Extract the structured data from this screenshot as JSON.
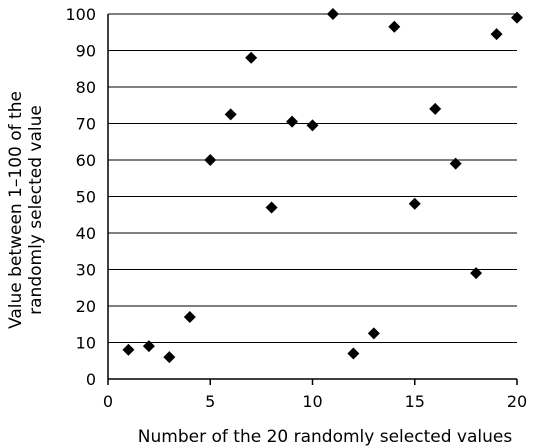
{
  "chart_data": {
    "type": "scatter",
    "title": "",
    "xlabel": "Number of the 20 randomly selected values",
    "ylabel_lines": [
      "Value between 1–100 of the",
      "randomly selected value"
    ],
    "xlim": [
      0,
      20
    ],
    "ylim": [
      0,
      100
    ],
    "xticks": [
      0,
      5,
      10,
      15,
      20
    ],
    "yticks": [
      0,
      10,
      20,
      30,
      40,
      50,
      60,
      70,
      80,
      90,
      100
    ],
    "grid": "horizontal",
    "legend": "none",
    "marker": "diamond",
    "marker_color": "#000000",
    "points": [
      {
        "x": 1,
        "y": 8
      },
      {
        "x": 2,
        "y": 9
      },
      {
        "x": 3,
        "y": 6
      },
      {
        "x": 4,
        "y": 17
      },
      {
        "x": 5,
        "y": 60
      },
      {
        "x": 6,
        "y": 72.5
      },
      {
        "x": 7,
        "y": 88
      },
      {
        "x": 8,
        "y": 47
      },
      {
        "x": 9,
        "y": 70.5
      },
      {
        "x": 10,
        "y": 69.5
      },
      {
        "x": 11,
        "y": 100
      },
      {
        "x": 12,
        "y": 7
      },
      {
        "x": 13,
        "y": 12.5
      },
      {
        "x": 14,
        "y": 96.5
      },
      {
        "x": 15,
        "y": 48
      },
      {
        "x": 16,
        "y": 74
      },
      {
        "x": 17,
        "y": 59
      },
      {
        "x": 18,
        "y": 29
      },
      {
        "x": 19,
        "y": 94.5
      },
      {
        "x": 20,
        "y": 99
      }
    ]
  }
}
